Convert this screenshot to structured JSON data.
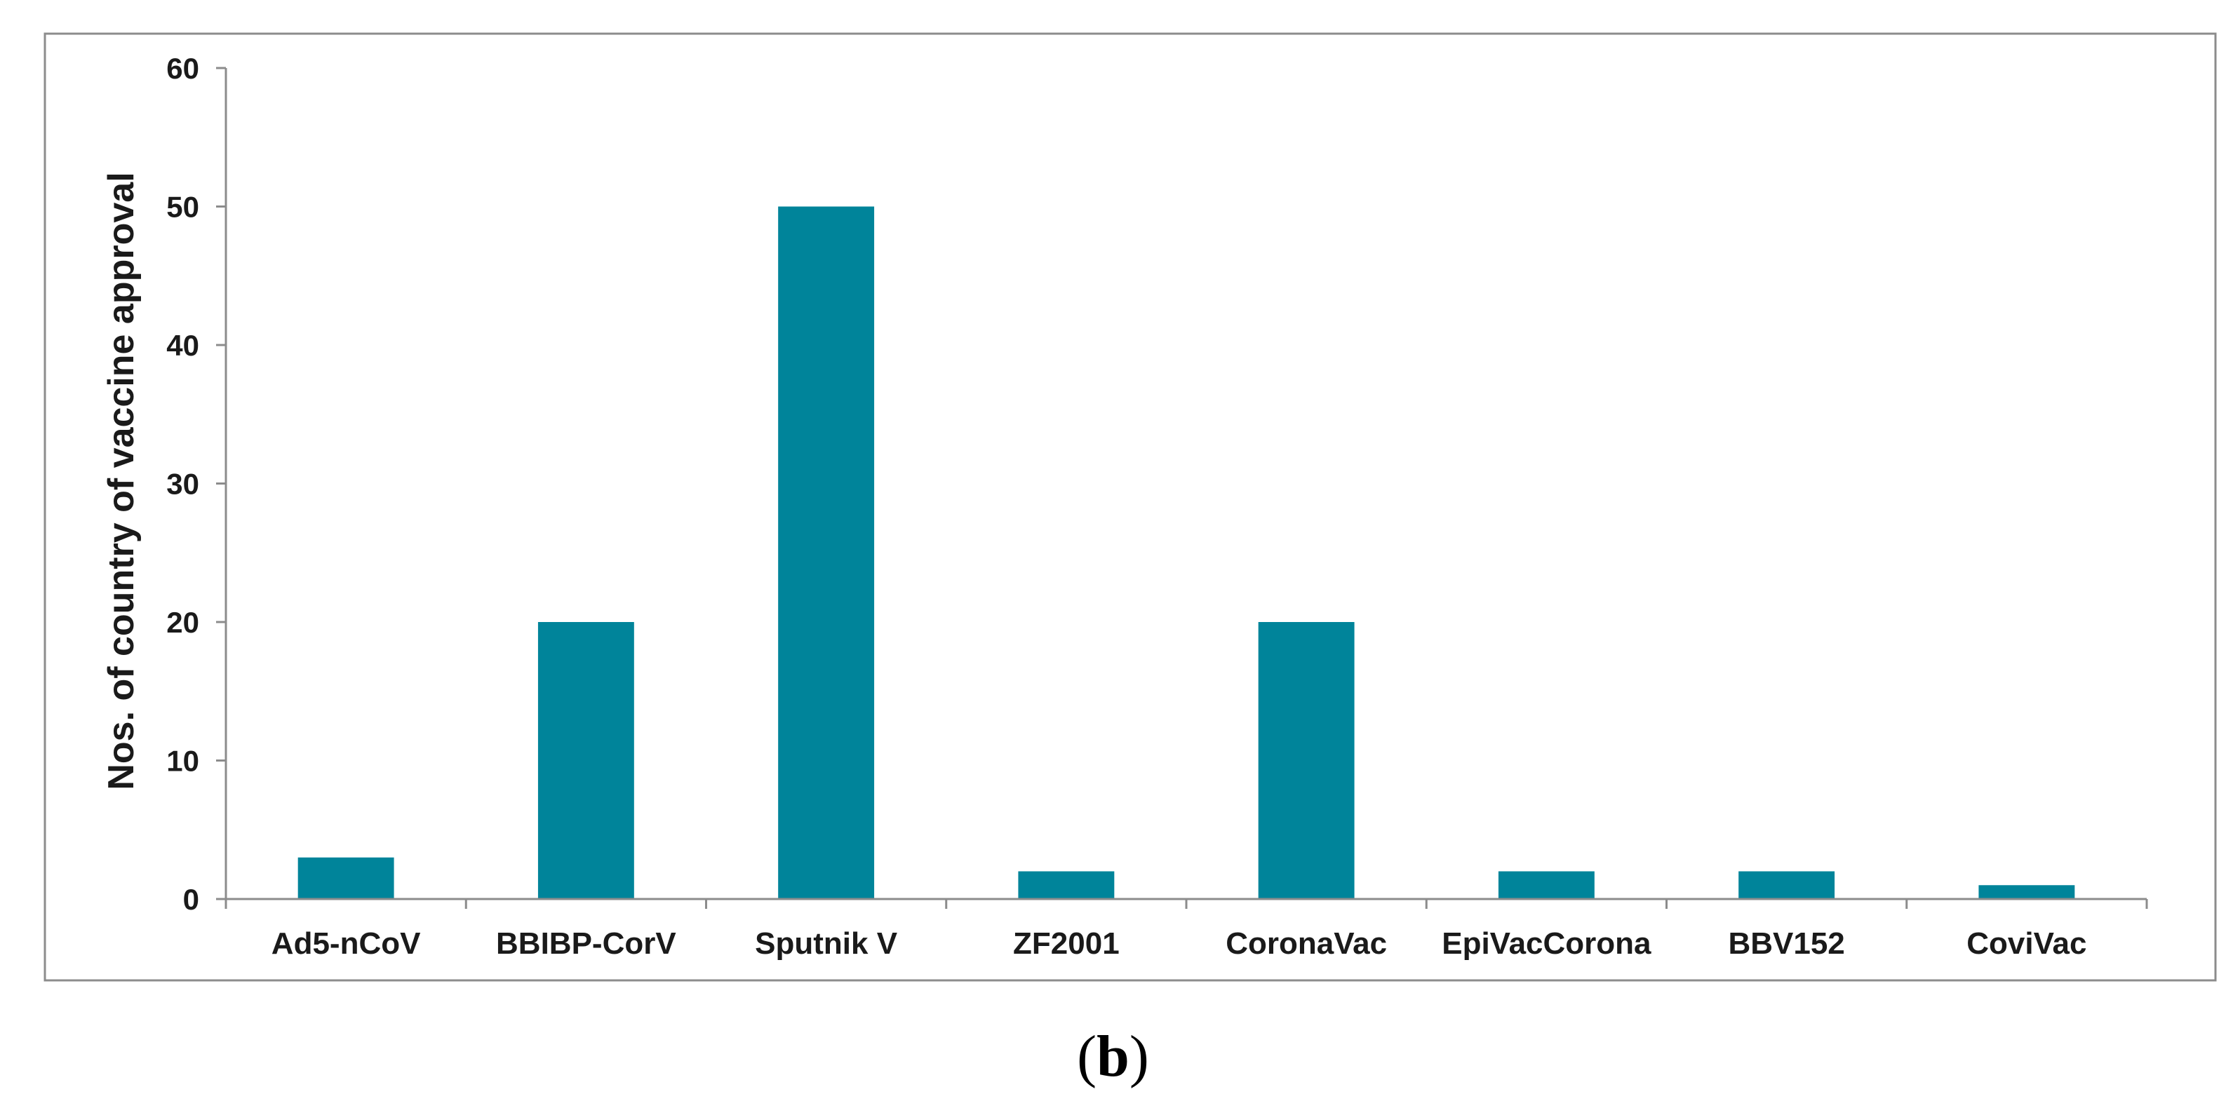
{
  "figure": {
    "panel_label_open": "(",
    "panel_label_letter": "b",
    "panel_label_close": ")"
  },
  "colors": {
    "bar": "#00849A",
    "axis": "#8c8c8c",
    "frame": "#8c8c8c",
    "text": "#1a1a1a"
  },
  "chart_data": {
    "type": "bar",
    "categories": [
      "Ad5-nCoV",
      "BBIBP-CorV",
      "Sputnik V",
      "ZF2001",
      "CoronaVac",
      "EpiVacCorona",
      "BBV152",
      "CoviVac"
    ],
    "values": [
      3,
      20,
      50,
      2,
      20,
      2,
      2,
      1
    ],
    "title": "",
    "xlabel": "",
    "ylabel": "Nos. of  country of vaccine approval",
    "ylim": [
      0,
      60
    ],
    "yticks": [
      0,
      10,
      20,
      30,
      40,
      50,
      60
    ],
    "grid": false,
    "legend": "none"
  }
}
